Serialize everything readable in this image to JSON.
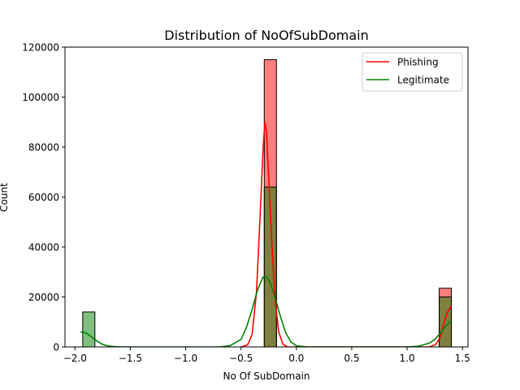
{
  "chart_data": {
    "type": "bar",
    "title": "Distribution of NoOfSubDomain",
    "xlabel": "No Of SubDomain",
    "ylabel": "Count",
    "xlim": [
      -2.09,
      1.55
    ],
    "ylim": [
      0,
      120000
    ],
    "xticks": [
      -2.0,
      -1.5,
      -1.0,
      -0.5,
      0.0,
      0.5,
      1.0,
      1.5
    ],
    "xtick_labels": [
      "−2.0",
      "−1.5",
      "−1.0",
      "−0.5",
      "0.0",
      "0.5",
      "1.0",
      "1.5"
    ],
    "yticks": [
      0,
      20000,
      40000,
      60000,
      80000,
      100000,
      120000
    ],
    "ytick_labels": [
      "0",
      "20000",
      "40000",
      "60000",
      "80000",
      "100000",
      "120000"
    ],
    "grid": false,
    "legend_position": "top-right",
    "series": [
      {
        "name": "Phishing",
        "color": "#ff0000",
        "bars": [
          {
            "x0": -0.29,
            "x1": -0.18,
            "value": 115000
          },
          {
            "x0": 1.29,
            "x1": 1.4,
            "value": 23500
          }
        ],
        "kde": [
          [
            -0.5,
            0
          ],
          [
            -0.44,
            800
          ],
          [
            -0.4,
            5000
          ],
          [
            -0.36,
            22000
          ],
          [
            -0.33,
            50000
          ],
          [
            -0.3,
            80000
          ],
          [
            -0.285,
            90000
          ],
          [
            -0.27,
            86000
          ],
          [
            -0.25,
            68000
          ],
          [
            -0.22,
            40000
          ],
          [
            -0.19,
            18000
          ],
          [
            -0.16,
            6000
          ],
          [
            -0.12,
            1000
          ],
          [
            -0.08,
            0
          ],
          [
            1.2,
            0
          ],
          [
            1.26,
            1000
          ],
          [
            1.3,
            4000
          ],
          [
            1.33,
            9000
          ],
          [
            1.36,
            13500
          ],
          [
            1.4,
            16500
          ]
        ]
      },
      {
        "name": "Legitimate",
        "color": "#008000",
        "bars": [
          {
            "x0": -1.93,
            "x1": -1.82,
            "value": 14000
          },
          {
            "x0": -0.29,
            "x1": -0.18,
            "value": 64000
          },
          {
            "x0": 1.29,
            "x1": 1.4,
            "value": 20000
          }
        ],
        "kde": [
          [
            -1.95,
            6000
          ],
          [
            -1.9,
            5600
          ],
          [
            -1.85,
            4000
          ],
          [
            -1.8,
            2300
          ],
          [
            -1.75,
            1000
          ],
          [
            -1.7,
            400
          ],
          [
            -1.62,
            80
          ],
          [
            -1.55,
            0
          ],
          [
            -0.7,
            0
          ],
          [
            -0.6,
            500
          ],
          [
            -0.5,
            3000
          ],
          [
            -0.45,
            8000
          ],
          [
            -0.4,
            15000
          ],
          [
            -0.35,
            23000
          ],
          [
            -0.3,
            28000
          ],
          [
            -0.27,
            28000
          ],
          [
            -0.24,
            26000
          ],
          [
            -0.2,
            21000
          ],
          [
            -0.15,
            13000
          ],
          [
            -0.1,
            6000
          ],
          [
            -0.05,
            2000
          ],
          [
            0.0,
            500
          ],
          [
            0.1,
            0
          ],
          [
            1.0,
            0
          ],
          [
            1.1,
            300
          ],
          [
            1.2,
            1500
          ],
          [
            1.25,
            3000
          ],
          [
            1.3,
            5500
          ],
          [
            1.35,
            8500
          ],
          [
            1.4,
            10500
          ]
        ]
      }
    ]
  }
}
